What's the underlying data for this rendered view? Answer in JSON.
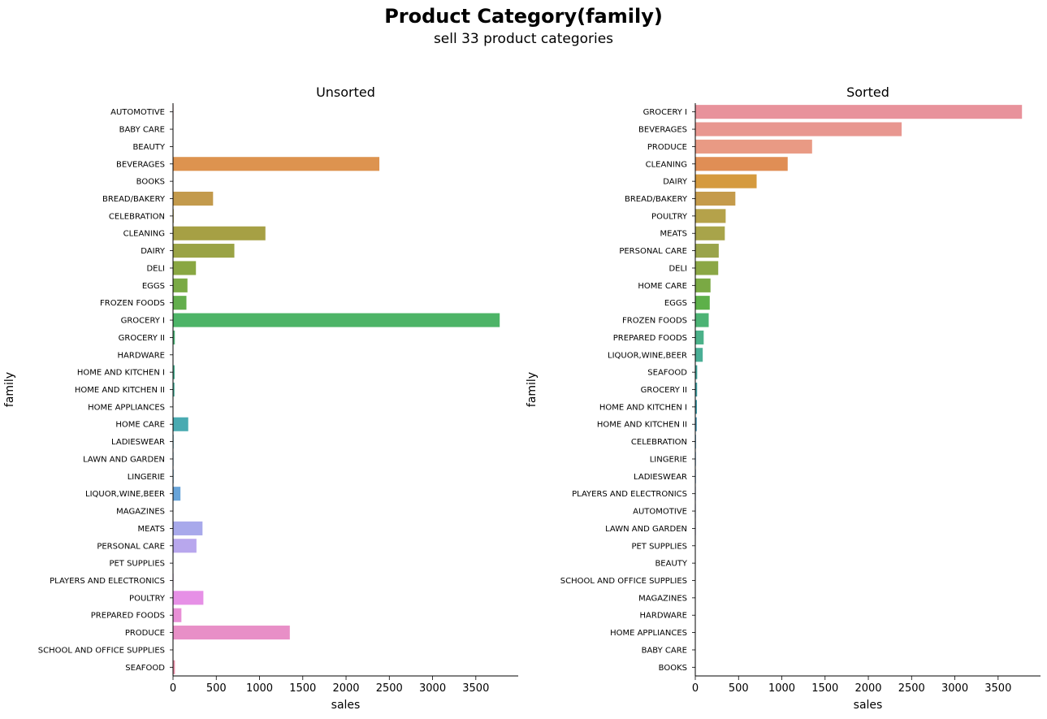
{
  "figure": {
    "title": "Product Category(family)",
    "subtitle": "sell 33 product categories"
  },
  "chart_data": [
    {
      "type": "bar",
      "orientation": "horizontal",
      "title": "Unsorted",
      "xlabel": "sales",
      "ylabel": "family",
      "xlim": [
        0,
        3990
      ],
      "xticks": [
        0,
        500,
        1000,
        1500,
        2000,
        2500,
        3000,
        3500
      ],
      "grid": false,
      "categories": [
        "AUTOMOTIVE",
        "BABY CARE",
        "BEAUTY",
        "BEVERAGES",
        "BOOKS",
        "BREAD/BAKERY",
        "CELEBRATION",
        "CLEANING",
        "DAIRY",
        "DELI",
        "EGGS",
        "FROZEN FOODS",
        "GROCERY I",
        "GROCERY II",
        "HARDWARE",
        "HOME AND KITCHEN I",
        "HOME AND KITCHEN II",
        "HOME APPLIANCES",
        "HOME CARE",
        "LADIESWEAR",
        "LAWN AND GARDEN",
        "LINGERIE",
        "LIQUOR,WINE,BEER",
        "MAGAZINES",
        "MEATS",
        "PERSONAL CARE",
        "PET SUPPLIES",
        "PLAYERS AND ELECTRONICS",
        "POULTRY",
        "PREPARED FOODS",
        "PRODUCE",
        "SCHOOL AND OFFICE SUPPLIES",
        "SEAFOOD"
      ],
      "values": [
        6,
        0.1,
        4,
        2385,
        0.1,
        463,
        8,
        1068,
        709,
        265,
        167,
        155,
        3776,
        21,
        1,
        19,
        17,
        0.5,
        176,
        7,
        6,
        7,
        86,
        3,
        341,
        271,
        4,
        6,
        351,
        97,
        1350,
        3,
        22
      ],
      "colors": [
        "#e8919a",
        "#e69388",
        "#e38f7a",
        "#dd934f",
        "#d39b47",
        "#c39a4c",
        "#b49d48",
        "#a6a044",
        "#9aa345",
        "#89a742",
        "#7aaa45",
        "#63ae4d",
        "#4db467",
        "#4cb176",
        "#4aae85",
        "#4aae90",
        "#4aae9a",
        "#4aaea6",
        "#49aab1",
        "#4ba6bb",
        "#50a3c5",
        "#58a0d1",
        "#68a4d9",
        "#8aa7e5",
        "#a8a9eb",
        "#b8a7ed",
        "#cba0ed",
        "#da97ea",
        "#e690e6",
        "#e88fd6",
        "#e88fc7",
        "#e88fb7",
        "#e88fa7"
      ]
    },
    {
      "type": "bar",
      "orientation": "horizontal",
      "title": "Sorted",
      "xlabel": "sales",
      "ylabel": "family",
      "xlim": [
        0,
        3990
      ],
      "xticks": [
        0,
        500,
        1000,
        1500,
        2000,
        2500,
        3000,
        3500
      ],
      "grid": false,
      "categories": [
        "GROCERY I",
        "BEVERAGES",
        "PRODUCE",
        "CLEANING",
        "DAIRY",
        "BREAD/BAKERY",
        "POULTRY",
        "MEATS",
        "PERSONAL CARE",
        "DELI",
        "HOME CARE",
        "EGGS",
        "FROZEN FOODS",
        "PREPARED FOODS",
        "LIQUOR,WINE,BEER",
        "SEAFOOD",
        "GROCERY II",
        "HOME AND KITCHEN I",
        "HOME AND KITCHEN II",
        "CELEBRATION",
        "LINGERIE",
        "LADIESWEAR",
        "PLAYERS AND ELECTRONICS",
        "AUTOMOTIVE",
        "LAWN AND GARDEN",
        "PET SUPPLIES",
        "BEAUTY",
        "SCHOOL AND OFFICE SUPPLIES",
        "MAGAZINES",
        "HARDWARE",
        "HOME APPLIANCES",
        "BABY CARE",
        "BOOKS"
      ],
      "values": [
        3776,
        2385,
        1350,
        1068,
        709,
        463,
        351,
        341,
        271,
        265,
        176,
        167,
        155,
        97,
        86,
        22,
        21,
        19,
        17,
        8,
        7,
        7,
        6,
        6,
        6,
        4,
        4,
        3,
        3,
        1,
        0.5,
        0.1,
        0.1
      ],
      "colors": [
        "#e8929b",
        "#e89790",
        "#e99a84",
        "#e08e55",
        "#d59a3e",
        "#c59b4b",
        "#b5a24a",
        "#a8a44a",
        "#9aa44b",
        "#8ba745",
        "#7aa944",
        "#5db049",
        "#4cb374",
        "#4bb189",
        "#4aae95",
        "#3fa097",
        "#3d9c9f",
        "#3f97a6",
        "#4794b0",
        "#4b97bf",
        "#5a98cf",
        "#6b9ed9",
        "#86a6e3",
        "#a3a7eb",
        "#b4a5ec",
        "#c6a0ec",
        "#d597e9",
        "#e28fe6",
        "#e88fd8",
        "#e88fca",
        "#e88fbb",
        "#e88fae",
        "#e88fa2"
      ]
    }
  ]
}
